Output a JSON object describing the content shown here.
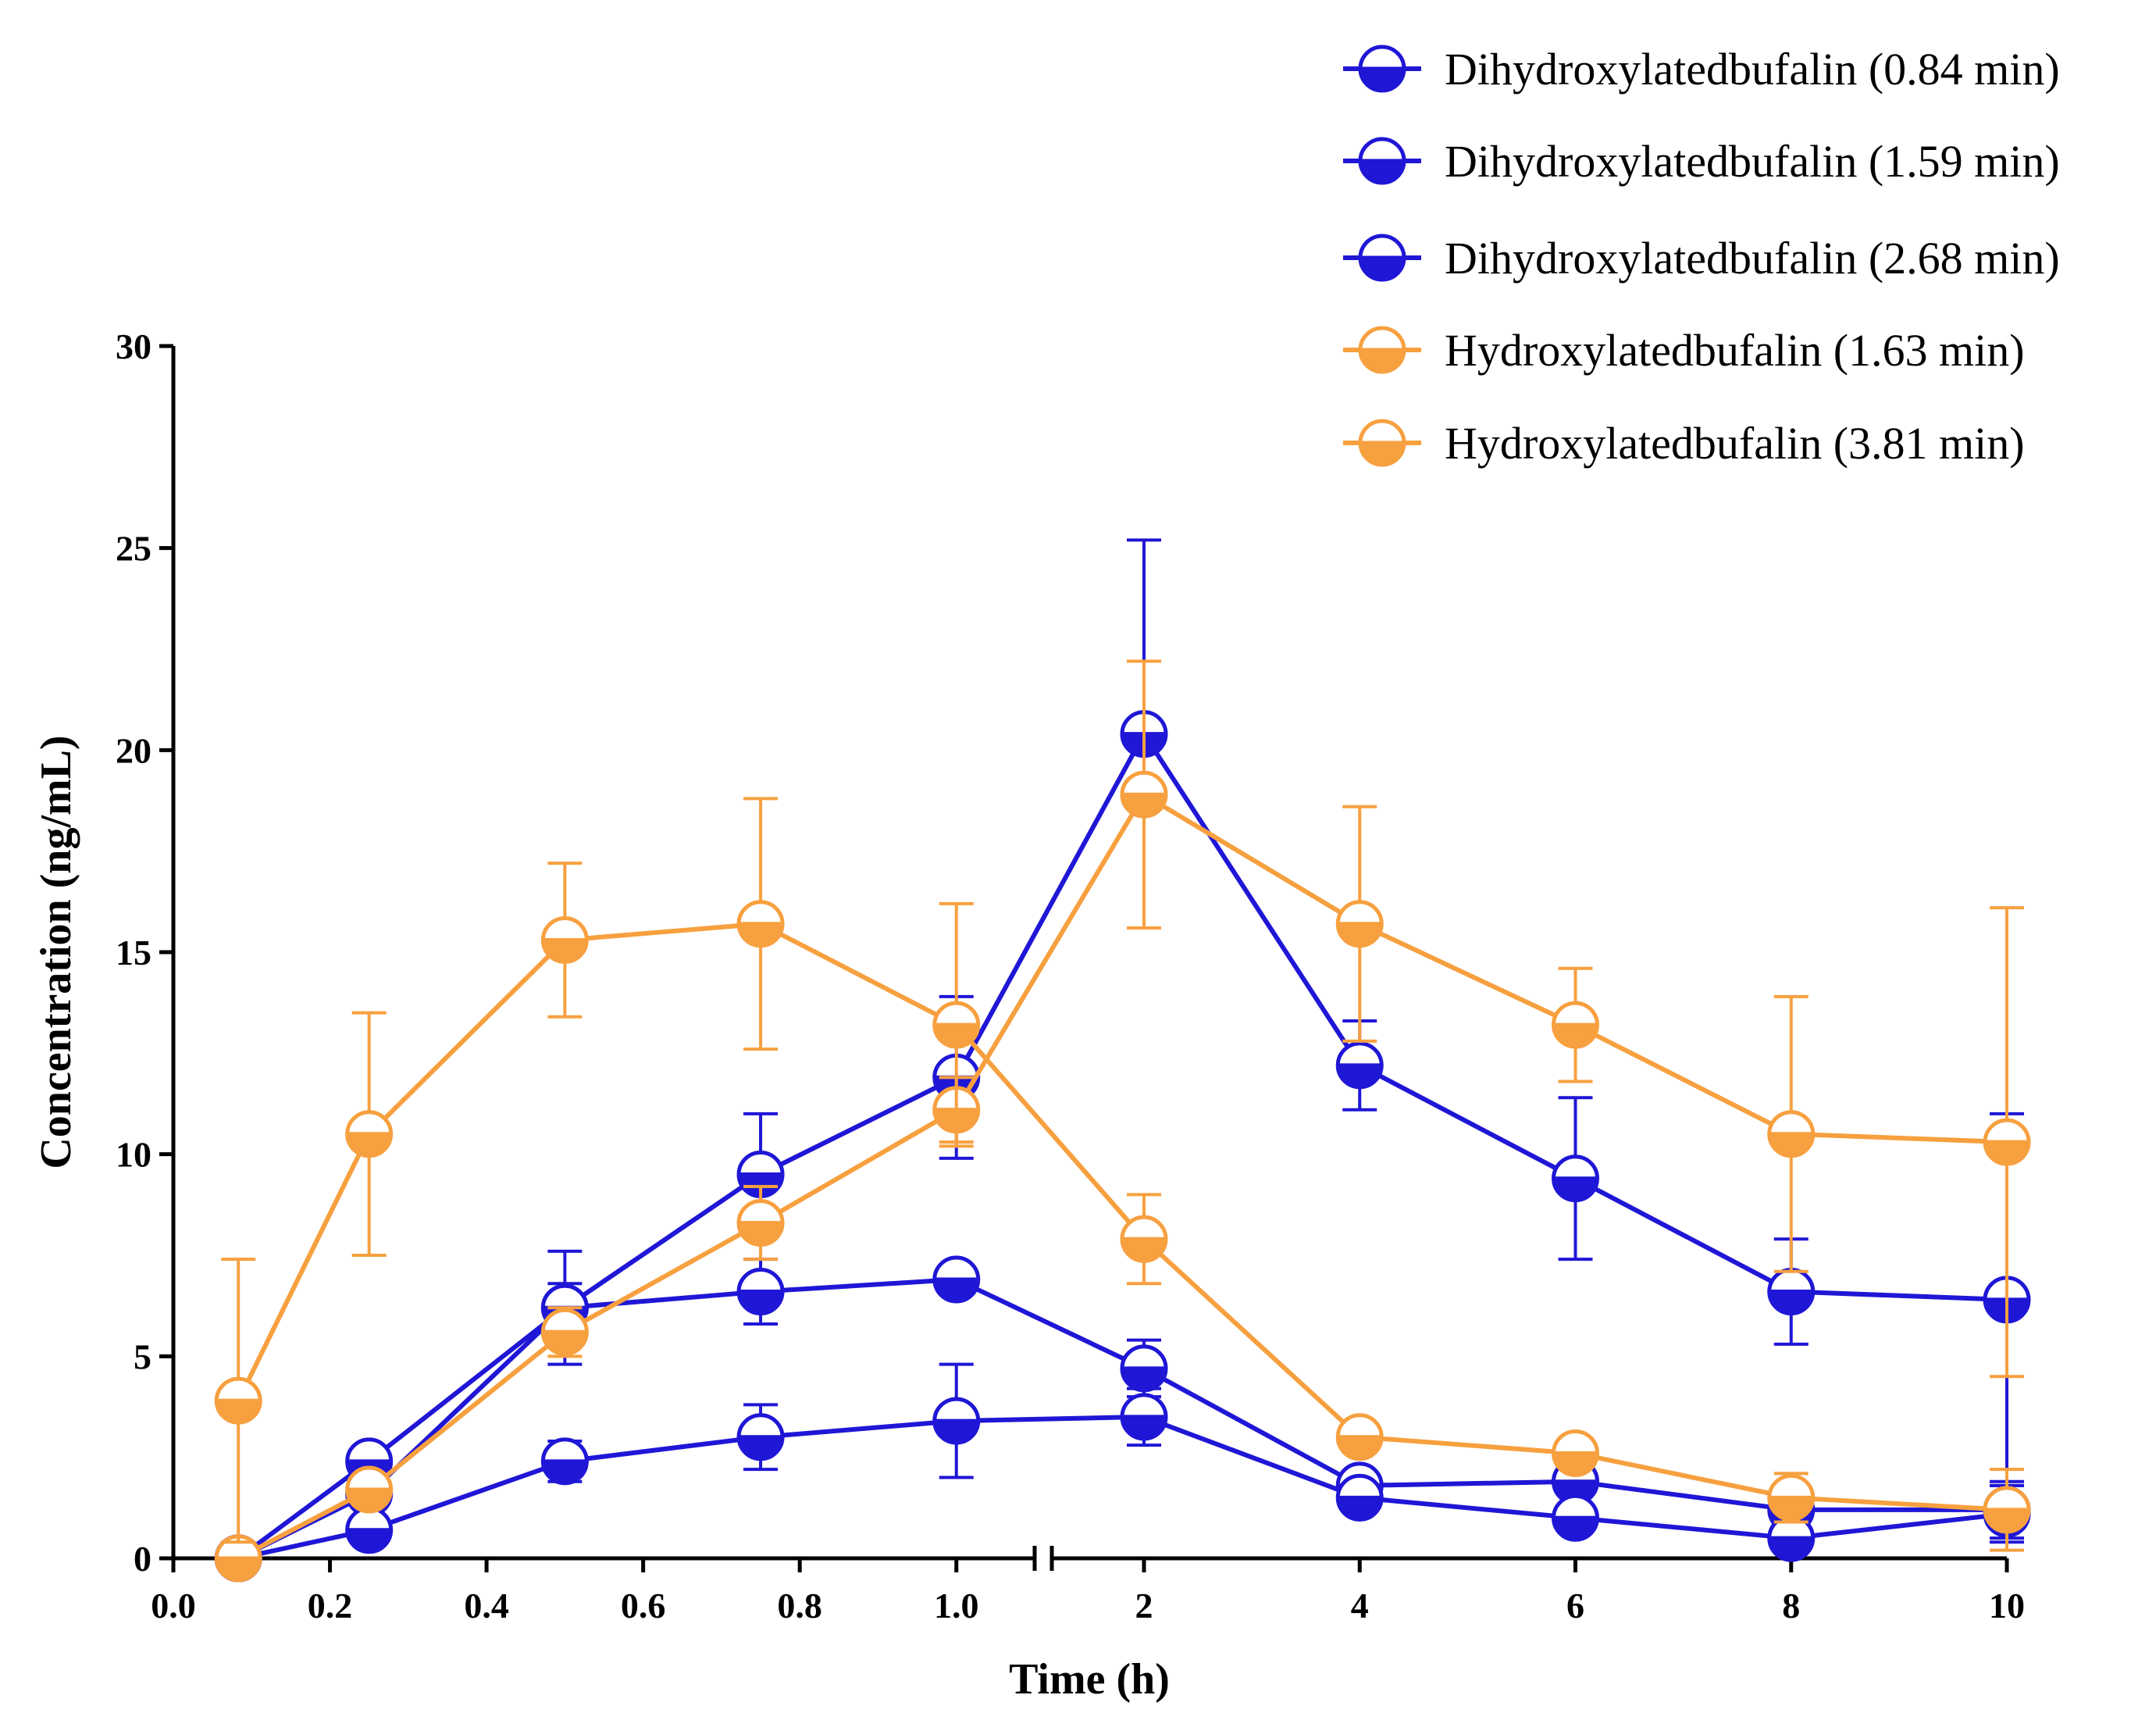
{
  "chart_data": {
    "type": "line",
    "title": "",
    "xlabel": "Time (h)",
    "ylabel": "Concentration (ng/mL)",
    "ylim": [
      0,
      30
    ],
    "yticks": [
      "0",
      "5",
      "10",
      "15",
      "20",
      "25",
      "30"
    ],
    "ytick_values": [
      0,
      5,
      10,
      15,
      20,
      25,
      30
    ],
    "x_axis_broken": true,
    "x_segment_1": {
      "range": [
        0.0,
        1.1
      ],
      "ticks": [
        "0.0",
        "0.2",
        "0.4",
        "0.6",
        "0.8",
        "1.0"
      ],
      "tick_values": [
        0.0,
        0.2,
        0.4,
        0.6,
        0.8,
        1.0
      ]
    },
    "x_segment_2": {
      "range": [
        1.1,
        10
      ],
      "ticks": [
        "2",
        "4",
        "6",
        "8",
        "10"
      ],
      "tick_values": [
        2,
        4,
        6,
        8,
        10
      ]
    },
    "x": [
      0.083,
      0.25,
      0.5,
      0.75,
      1.0,
      2,
      4,
      6,
      8,
      10
    ],
    "legend_position": "top-right",
    "series": [
      {
        "name": "Dihydroxylatedbufalin (0.84 min)",
        "color": "#1f16d6",
        "marker": "bottom-half-filled",
        "values": [
          0,
          1.6,
          6.2,
          6.6,
          6.9,
          4.7,
          1.8,
          1.9,
          1.2,
          1.2
        ],
        "errors": [
          0,
          0,
          0.6,
          0.8,
          0,
          0.7,
          0,
          0,
          0.6,
          0.7
        ]
      },
      {
        "name": "Dihydroxylatedbufalin (1.59 min)",
        "color": "#1f16d6",
        "marker": "bottom-half-filled",
        "values": [
          0,
          2.4,
          6.2,
          9.5,
          11.9,
          20.4,
          12.2,
          9.4,
          6.6,
          6.4
        ],
        "errors": [
          0,
          0,
          1.4,
          1.5,
          2.0,
          4.8,
          1.1,
          2.0,
          1.3,
          4.6
        ]
      },
      {
        "name": "Dihydroxylatedbufalin (2.68 min)",
        "color": "#1f16d6",
        "marker": "bottom-half-filled",
        "values": [
          0,
          0.7,
          2.4,
          3.0,
          3.4,
          3.5,
          1.5,
          1.0,
          0.5,
          1.1
        ],
        "errors": [
          0,
          0,
          0.5,
          0.8,
          1.4,
          0.7,
          0,
          0,
          0,
          0.7
        ]
      },
      {
        "name": "Hydroxylatedbufalin (1.63 min)",
        "color": "#f7a03f",
        "marker": "bottom-half-filled",
        "values": [
          0,
          1.7,
          5.6,
          8.3,
          11.1,
          18.9,
          15.7,
          13.2,
          10.5,
          10.3
        ],
        "errors": [
          0,
          0,
          0.6,
          0.9,
          0.8,
          3.3,
          2.9,
          1.4,
          3.4,
          5.8
        ]
      },
      {
        "name": "Hydroxylatedbufalin (3.81 min)",
        "color": "#f7a03f",
        "marker": "bottom-half-filled",
        "values": [
          3.9,
          10.5,
          15.3,
          15.7,
          13.2,
          7.9,
          3.0,
          2.6,
          1.5,
          1.2
        ],
        "errors": [
          3.5,
          3.0,
          1.9,
          3.1,
          3.0,
          1.1,
          0,
          0,
          0.6,
          1.0
        ]
      }
    ]
  }
}
